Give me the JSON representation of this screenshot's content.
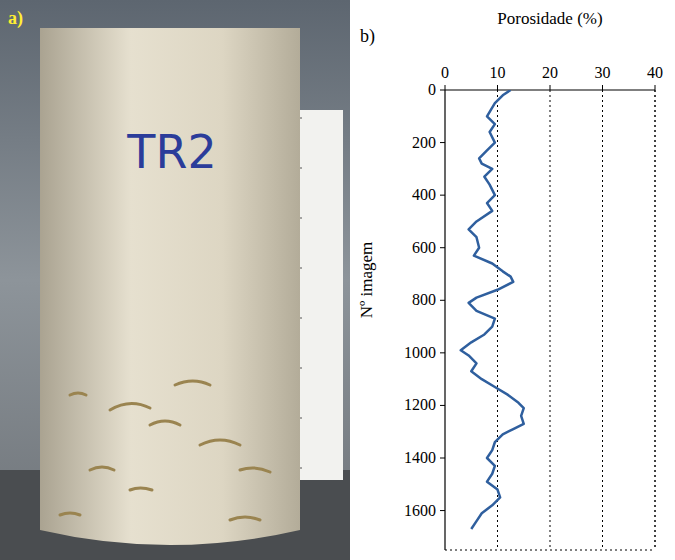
{
  "photo": {
    "panel_label": "a)",
    "sample_label": "TR2"
  },
  "chart_data": {
    "type": "line",
    "panel_label": "b)",
    "orientation": "horizontal",
    "x_label": "Porosidade (%)",
    "y_label": "Nº imagem",
    "xlim": [
      0,
      40
    ],
    "xticks": [
      0,
      10,
      20,
      30,
      40
    ],
    "ylim": [
      0,
      1750
    ],
    "yticks": [
      0,
      200,
      400,
      600,
      800,
      1000,
      1200,
      1400,
      1600
    ],
    "grid": true,
    "x": [
      0,
      20,
      50,
      100,
      130,
      160,
      200,
      230,
      260,
      280,
      300,
      330,
      360,
      400,
      430,
      460,
      500,
      530,
      560,
      600,
      630,
      660,
      690,
      710,
      730,
      760,
      790,
      810,
      840,
      870,
      900,
      930,
      960,
      990,
      1010,
      1040,
      1070,
      1100,
      1130,
      1160,
      1190,
      1210,
      1240,
      1270,
      1290,
      1310,
      1340,
      1370,
      1400,
      1430,
      1460,
      1490,
      1520,
      1550,
      1580,
      1610,
      1640,
      1670
    ],
    "series": [
      {
        "name": "TR2",
        "color": "#2f5f9e",
        "line_style": "solid",
        "values": [
          12.5,
          11,
          9.5,
          8,
          9.5,
          8.5,
          9.5,
          8,
          6.5,
          7,
          9,
          7.5,
          8.5,
          9.5,
          8,
          9,
          6,
          4.5,
          6,
          6.5,
          5.5,
          9,
          11,
          12.5,
          13,
          10,
          6,
          4.5,
          6,
          9.5,
          9,
          7.5,
          5,
          3,
          4.5,
          6,
          5,
          7,
          9.5,
          12,
          14,
          15,
          14.5,
          15,
          13,
          11,
          9.5,
          9,
          8,
          9.5,
          9,
          8,
          10,
          10.5,
          9,
          7,
          6,
          5
        ]
      }
    ]
  }
}
